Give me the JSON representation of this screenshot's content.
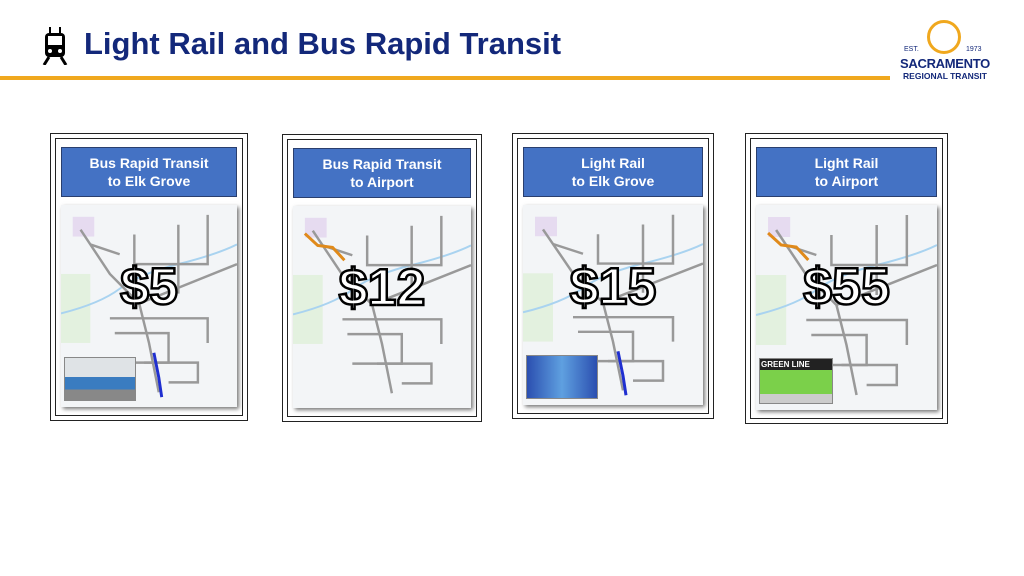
{
  "header": {
    "title": "Light Rail and Bus Rapid Transit",
    "icon": "train-icon"
  },
  "logo": {
    "est": "EST.",
    "year": "1973",
    "name": "SACRAMENTO",
    "sub": "REGIONAL TRANSIT"
  },
  "colors": {
    "title": "#13287a",
    "accent": "#f0a81e",
    "card_header": "#4472c4"
  },
  "cards": [
    {
      "line1": "Bus Rapid Transit",
      "line2": "to Elk Grove",
      "price": "$5",
      "route_color": "#1f2fd0",
      "photo": "bus"
    },
    {
      "line1": "Bus Rapid Transit",
      "line2": "to Airport",
      "price": "$12",
      "route_color": "#e08a1a",
      "photo": ""
    },
    {
      "line1": "Light Rail",
      "line2": "to Elk Grove",
      "price": "$15",
      "route_color": "#1f2fd0",
      "photo": "light-rail"
    },
    {
      "line1": "Light Rail",
      "line2": "to Airport",
      "price": "$55",
      "route_color": "#e08a1a",
      "photo": "green-line"
    }
  ],
  "photo_caption": "GREEN LINE"
}
